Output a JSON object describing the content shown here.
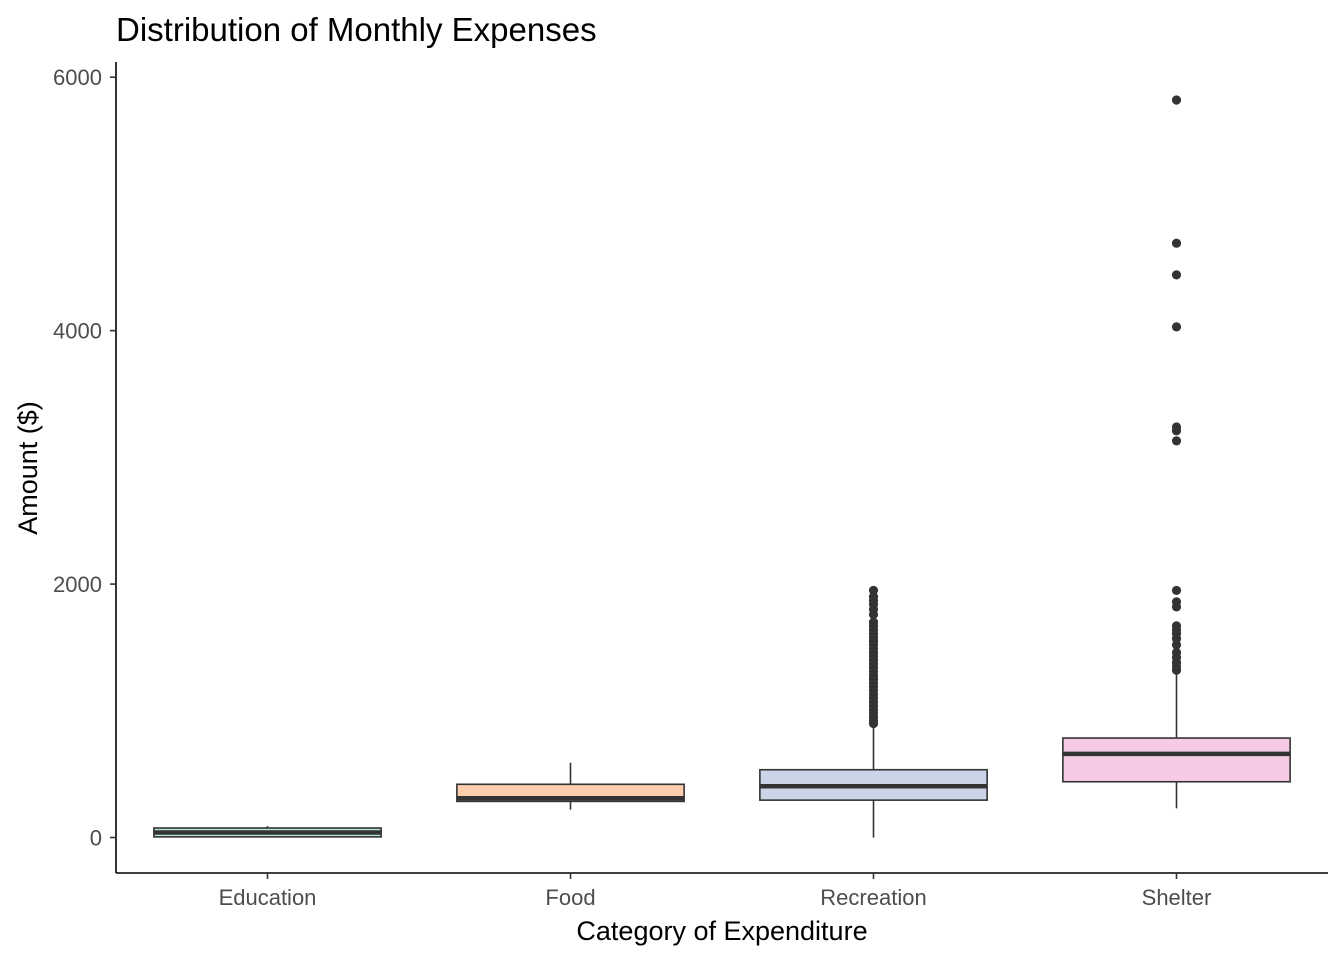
{
  "chart_data": {
    "type": "box",
    "title": "Distribution of Monthly Expenses",
    "xlabel": "Category of Expenditure",
    "ylabel": "Amount ($)",
    "ylim": [
      -280,
      6120
    ],
    "yticks": [
      0,
      2000,
      4000,
      6000
    ],
    "ytick_labels": [
      "0",
      "2000",
      "4000",
      "6000"
    ],
    "categories": [
      "Education",
      "Food",
      "Recreation",
      "Shelter"
    ],
    "grid": false,
    "legend": "none",
    "series": [
      {
        "category": "Education",
        "fill": "#b3e2cd",
        "min": 0,
        "q1": 5,
        "median": 40,
        "q3": 75,
        "max": 90,
        "outliers": []
      },
      {
        "category": "Food",
        "fill": "#fdcdac",
        "min": 220,
        "q1": 285,
        "median": 310,
        "q3": 420,
        "max": 590,
        "outliers": []
      },
      {
        "category": "Recreation",
        "fill": "#cbd5e8",
        "min": 0,
        "q1": 295,
        "median": 405,
        "q3": 535,
        "max": 880,
        "outliers": [
          900,
          920,
          950,
          980,
          1010,
          1040,
          1070,
          1100,
          1130,
          1160,
          1190,
          1220,
          1250,
          1280,
          1310,
          1340,
          1370,
          1400,
          1430,
          1460,
          1490,
          1520,
          1550,
          1580,
          1610,
          1640,
          1670,
          1700,
          1760,
          1800,
          1840,
          1870,
          1900,
          1950
        ]
      },
      {
        "category": "Shelter",
        "fill": "#f4cae4",
        "min": 230,
        "q1": 440,
        "median": 660,
        "q3": 785,
        "max": 1290,
        "outliers": [
          1320,
          1350,
          1380,
          1420,
          1460,
          1520,
          1570,
          1610,
          1640,
          1670,
          1820,
          1860,
          1950,
          3130,
          3210,
          3240,
          4030,
          4440,
          4690,
          5820
        ]
      }
    ]
  }
}
